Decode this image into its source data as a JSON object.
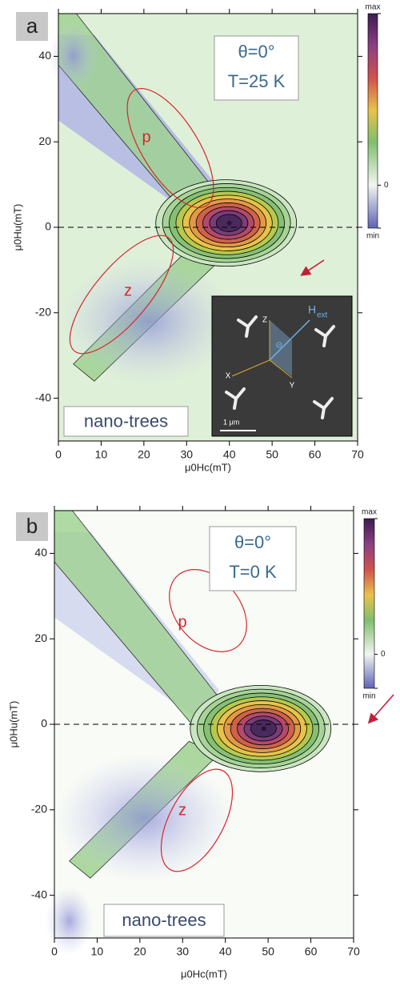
{
  "chart_data": [
    {
      "type": "contour",
      "panel": "a",
      "annotation": [
        "θ=0°",
        "T=25 K"
      ],
      "sample": "nano-trees",
      "regions": [
        "p",
        "z"
      ],
      "x_label": "μ0Hc(mT)",
      "y_label": "μ0Hu(mT)",
      "xlim": [
        0,
        70
      ],
      "ylim": [
        -50,
        50
      ],
      "xticks": [
        0,
        10,
        20,
        30,
        40,
        50,
        60,
        70
      ],
      "yticks": [
        -40,
        -20,
        0,
        20,
        40
      ],
      "clim": [
        -0.25,
        1
      ],
      "cticks": [
        {
          "value": 1,
          "label": "max"
        },
        0,
        {
          "value": -0.25,
          "label": "min"
        }
      ],
      "peak": {
        "x": 40,
        "y": 1
      },
      "zero_line": true,
      "inset": {
        "axes": [
          "Z",
          "X",
          "Y"
        ],
        "field": "H",
        "field_sub": "ext",
        "angle": "Θ",
        "scale": "1 μm"
      }
    },
    {
      "type": "contour",
      "panel": "b",
      "annotation": [
        "θ=0°",
        "T=0 K"
      ],
      "sample": "nano-trees",
      "regions": [
        "p",
        "z"
      ],
      "x_label": "μ0Hc(mT)",
      "y_label": "μ0Hu(mT)",
      "xlim": [
        0,
        70
      ],
      "ylim": [
        -50,
        50
      ],
      "xticks": [
        0,
        10,
        20,
        30,
        40,
        50,
        60,
        70
      ],
      "yticks": [
        -40,
        -20,
        0,
        20,
        40
      ],
      "clim": [
        -0.25,
        1
      ],
      "cticks": [
        {
          "value": 1,
          "label": "max"
        },
        0,
        {
          "value": -0.25,
          "label": "min"
        }
      ],
      "peak": {
        "x": 49,
        "y": -1
      },
      "zero_line": true
    }
  ]
}
